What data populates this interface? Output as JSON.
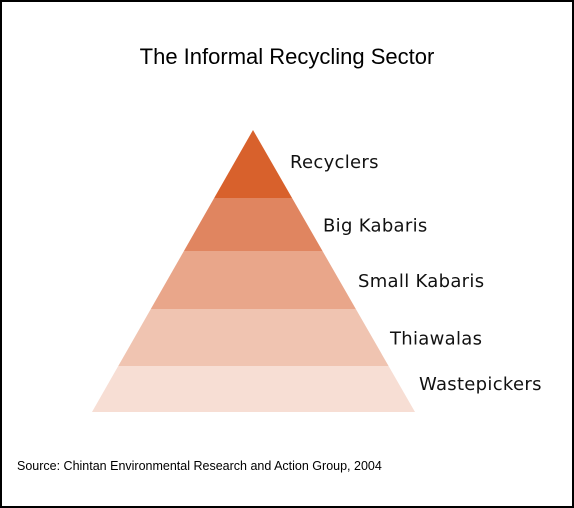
{
  "title": "The Informal Recycling Sector",
  "levels": [
    {
      "label": "Recyclers"
    },
    {
      "label": "Big Kabaris"
    },
    {
      "label": "Small Kabaris"
    },
    {
      "label": "Thiawalas"
    },
    {
      "label": "Wastepickers"
    }
  ],
  "source": "Source: Chintan Environmental Research and Action Group, 2004"
}
